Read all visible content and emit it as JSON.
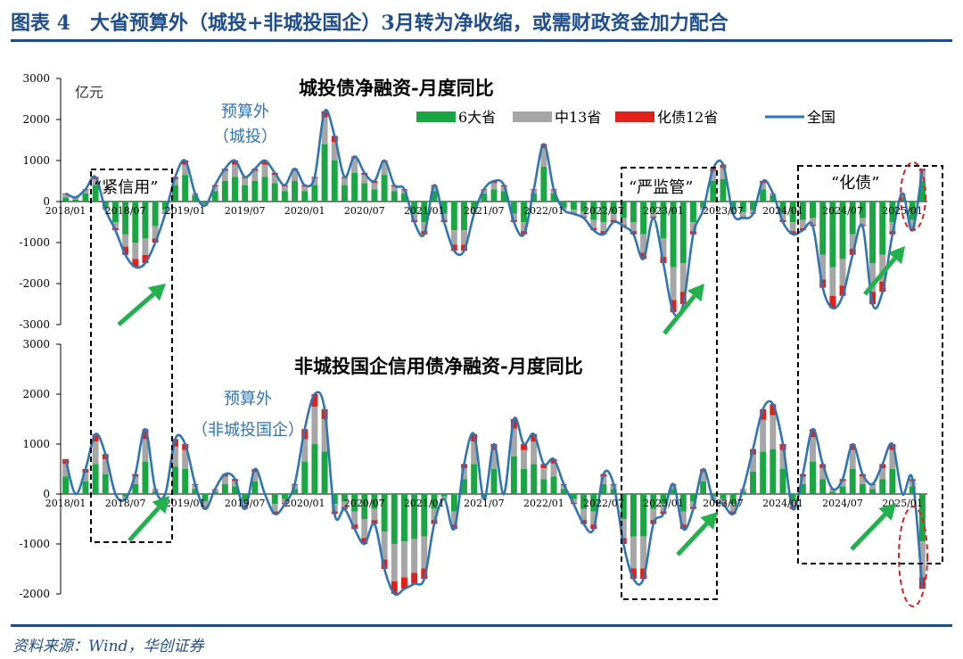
{
  "figure": {
    "title": "图表 4　大省预算外（城投+非城投国企）3月转为净收缩，或需财政资金加力配合",
    "source": "资料来源：Wind，华创证券"
  },
  "colors": {
    "frame": "#1f4e8c",
    "six_provinces": "#1aa643",
    "mid13": "#a6a6a6",
    "debt12": "#e0201b",
    "national_line": "#2e75b6",
    "arrow": "#22b14c",
    "ellipse": "#e02020"
  },
  "chart_data": [
    {
      "type": "bar",
      "title": "城投债净融资-月度同比",
      "unit_label": "亿元",
      "ylim": [
        -3000,
        3000
      ],
      "yticks": [
        -3000,
        -2000,
        -1000,
        0,
        1000,
        2000,
        3000
      ],
      "xtick_labels": [
        "2018/01",
        "2018/07",
        "2019/01",
        "2019/07",
        "2020/01",
        "2020/07",
        "2021/01",
        "2021/07",
        "2022/01",
        "2022/07",
        "2023/01",
        "2023/07",
        "2024/01",
        "2024/07",
        "2025/01"
      ],
      "series_names": [
        "6大省",
        "中13省",
        "化债12省",
        "全国"
      ],
      "stacked_series": [
        "6大省",
        "中13省",
        "化债12省"
      ],
      "line_series": "全国",
      "legend_position": "top-right",
      "x": [
        "2018/01",
        "2018/02",
        "2018/03",
        "2018/04",
        "2018/05",
        "2018/06",
        "2018/07",
        "2018/08",
        "2018/09",
        "2018/10",
        "2018/11",
        "2018/12",
        "2019/01",
        "2019/02",
        "2019/03",
        "2019/04",
        "2019/05",
        "2019/06",
        "2019/07",
        "2019/08",
        "2019/09",
        "2019/10",
        "2019/11",
        "2019/12",
        "2020/01",
        "2020/02",
        "2020/03",
        "2020/04",
        "2020/05",
        "2020/06",
        "2020/07",
        "2020/08",
        "2020/09",
        "2020/10",
        "2020/11",
        "2020/12",
        "2021/01",
        "2021/02",
        "2021/03",
        "2021/04",
        "2021/05",
        "2021/06",
        "2021/07",
        "2021/08",
        "2021/09",
        "2021/10",
        "2021/11",
        "2021/12",
        "2022/01",
        "2022/02",
        "2022/03",
        "2022/04",
        "2022/05",
        "2022/06",
        "2022/07",
        "2022/08",
        "2022/09",
        "2022/10",
        "2022/11",
        "2022/12",
        "2023/01",
        "2023/02",
        "2023/03",
        "2023/04",
        "2023/05",
        "2023/06",
        "2023/07",
        "2023/08",
        "2023/09",
        "2023/10",
        "2023/11",
        "2023/12",
        "2024/01",
        "2024/02",
        "2024/03",
        "2024/04",
        "2024/05",
        "2024/06",
        "2024/07",
        "2024/08",
        "2024/09",
        "2024/10",
        "2024/11",
        "2024/12",
        "2025/01",
        "2025/02",
        "2025/03"
      ],
      "national": [
        200,
        100,
        300,
        600,
        -200,
        -700,
        -1300,
        -1600,
        -1500,
        -1000,
        -300,
        600,
        1000,
        200,
        -100,
        400,
        800,
        1000,
        600,
        800,
        1000,
        700,
        400,
        800,
        400,
        600,
        2200,
        1600,
        600,
        1100,
        700,
        500,
        1000,
        400,
        300,
        -500,
        -800,
        400,
        -500,
        -1200,
        -1200,
        -300,
        300,
        500,
        400,
        -500,
        -800,
        300,
        1400,
        300,
        -200,
        -300,
        -400,
        -700,
        -800,
        -500,
        -600,
        -800,
        -1400,
        -400,
        -1500,
        -2700,
        -2500,
        -800,
        -200,
        800,
        900,
        -300,
        -400,
        -300,
        500,
        200,
        -500,
        -800,
        -700,
        -600,
        -2100,
        -2600,
        -2300,
        -1300,
        -600,
        -2500,
        -2200,
        -800,
        200,
        -700,
        800
      ],
      "six_provinces": [
        100,
        50,
        200,
        400,
        -150,
        -500,
        -800,
        -1000,
        -900,
        -600,
        -200,
        400,
        650,
        150,
        -50,
        250,
        500,
        600,
        400,
        500,
        600,
        450,
        250,
        500,
        250,
        400,
        1400,
        1000,
        400,
        700,
        450,
        300,
        650,
        250,
        200,
        -300,
        -500,
        250,
        -300,
        -700,
        -700,
        -200,
        200,
        300,
        250,
        -300,
        -500,
        200,
        850,
        200,
        -150,
        -200,
        -250,
        -450,
        -500,
        -300,
        -400,
        -500,
        -800,
        -250,
        -900,
        -1600,
        -1500,
        -500,
        -150,
        500,
        550,
        -200,
        -250,
        -200,
        300,
        150,
        -300,
        -500,
        -450,
        -400,
        -1300,
        -1600,
        -1400,
        -800,
        -400,
        -1500,
        -1300,
        -500,
        100,
        -450,
        500
      ],
      "mid13": [
        80,
        40,
        80,
        150,
        -40,
        -150,
        -300,
        -400,
        -400,
        -300,
        -80,
        150,
        250,
        40,
        -40,
        120,
        250,
        300,
        170,
        250,
        300,
        200,
        120,
        250,
        120,
        170,
        650,
        450,
        170,
        350,
        200,
        150,
        300,
        120,
        80,
        -150,
        -220,
        120,
        -150,
        -350,
        -350,
        -80,
        80,
        150,
        120,
        -150,
        -220,
        80,
        450,
        80,
        -40,
        -80,
        -120,
        -200,
        -220,
        -150,
        -170,
        -220,
        -450,
        -120,
        -450,
        -800,
        -700,
        -220,
        -40,
        250,
        270,
        -80,
        -120,
        -80,
        150,
        40,
        -150,
        -220,
        -200,
        -170,
        -600,
        -700,
        -650,
        -350,
        -170,
        -700,
        -650,
        -220,
        80,
        -200,
        250
      ],
      "debt12": [
        20,
        10,
        20,
        50,
        -10,
        -50,
        -200,
        -200,
        -200,
        -100,
        -20,
        50,
        100,
        10,
        -10,
        30,
        50,
        100,
        30,
        50,
        100,
        50,
        30,
        50,
        30,
        30,
        150,
        150,
        30,
        50,
        50,
        50,
        50,
        30,
        20,
        -50,
        -80,
        30,
        -50,
        -150,
        -150,
        -20,
        20,
        50,
        30,
        -50,
        -80,
        20,
        100,
        20,
        -10,
        -20,
        -30,
        -50,
        -80,
        -50,
        -30,
        -80,
        -150,
        -30,
        -150,
        -300,
        -300,
        -80,
        -10,
        50,
        80,
        -20,
        -30,
        -20,
        50,
        10,
        -50,
        -80,
        -50,
        -30,
        -200,
        -300,
        -250,
        -150,
        -30,
        -300,
        -250,
        -80,
        20,
        -50,
        50
      ]
    },
    {
      "type": "bar",
      "title": "非城投国企信用债净融资-月度同比",
      "ylim": [
        -2000,
        3000
      ],
      "yticks": [
        -2000,
        -1000,
        0,
        1000,
        2000,
        3000
      ],
      "xtick_labels": [
        "2018/01",
        "2018/07",
        "2019/01",
        "2019/07",
        "2020/01",
        "2020/07",
        "2021/01",
        "2021/07",
        "2022/01",
        "2022/07",
        "2023/01",
        "2023/07",
        "2024/01",
        "2024/07",
        "2025/01"
      ],
      "stacked_series": [
        "6大省",
        "中13省",
        "化债12省"
      ],
      "line_series": "全国",
      "x": [
        "2018/01",
        "2018/02",
        "2018/03",
        "2018/04",
        "2018/05",
        "2018/06",
        "2018/07",
        "2018/08",
        "2018/09",
        "2018/10",
        "2018/11",
        "2018/12",
        "2019/01",
        "2019/02",
        "2019/03",
        "2019/04",
        "2019/05",
        "2019/06",
        "2019/07",
        "2019/08",
        "2019/09",
        "2019/10",
        "2019/11",
        "2019/12",
        "2020/01",
        "2020/02",
        "2020/03",
        "2020/04",
        "2020/05",
        "2020/06",
        "2020/07",
        "2020/08",
        "2020/09",
        "2020/10",
        "2020/11",
        "2020/12",
        "2021/01",
        "2021/02",
        "2021/03",
        "2021/04",
        "2021/05",
        "2021/06",
        "2021/07",
        "2021/08",
        "2021/09",
        "2021/10",
        "2021/11",
        "2021/12",
        "2022/01",
        "2022/02",
        "2022/03",
        "2022/04",
        "2022/05",
        "2022/06",
        "2022/07",
        "2022/08",
        "2022/09",
        "2022/10",
        "2022/11",
        "2022/12",
        "2023/01",
        "2023/02",
        "2023/03",
        "2023/04",
        "2023/05",
        "2023/06",
        "2023/07",
        "2023/08",
        "2023/09",
        "2023/10",
        "2023/11",
        "2023/12",
        "2024/01",
        "2024/02",
        "2024/03",
        "2024/04",
        "2024/05",
        "2024/06",
        "2024/07",
        "2024/08",
        "2024/09",
        "2024/10",
        "2024/11",
        "2024/12",
        "2025/01",
        "2025/02",
        "2025/03"
      ],
      "national": [
        700,
        0,
        500,
        1200,
        800,
        0,
        -100,
        400,
        1300,
        100,
        0,
        1100,
        1000,
        200,
        -300,
        100,
        400,
        300,
        -300,
        500,
        0,
        -400,
        -200,
        200,
        1300,
        2000,
        1700,
        -400,
        -300,
        -700,
        -1000,
        -600,
        -1500,
        -2000,
        -1900,
        -1800,
        -1700,
        -600,
        -100,
        -700,
        600,
        1200,
        -100,
        1000,
        0,
        1500,
        1000,
        1200,
        600,
        700,
        200,
        -200,
        -600,
        -700,
        400,
        200,
        -1000,
        -1700,
        -1700,
        -600,
        -400,
        200,
        -700,
        -300,
        500,
        -100,
        -200,
        -400,
        100,
        900,
        1700,
        1800,
        1000,
        -300,
        400,
        1300,
        600,
        100,
        300,
        1000,
        400,
        200,
        600,
        1000,
        0,
        300,
        -1900
      ],
      "six_provinces": [
        350,
        0,
        250,
        600,
        400,
        0,
        -50,
        200,
        650,
        50,
        0,
        550,
        500,
        100,
        -150,
        50,
        200,
        150,
        -150,
        250,
        0,
        -200,
        -100,
        100,
        650,
        1000,
        850,
        -200,
        -150,
        -350,
        -500,
        -300,
        -750,
        -1000,
        -950,
        -900,
        -850,
        -300,
        -50,
        -350,
        300,
        600,
        -50,
        500,
        0,
        750,
        500,
        600,
        300,
        350,
        100,
        -100,
        -300,
        -350,
        200,
        100,
        -500,
        -850,
        -850,
        -300,
        -200,
        100,
        -350,
        -150,
        250,
        -50,
        -100,
        -200,
        50,
        450,
        850,
        900,
        500,
        -150,
        200,
        650,
        300,
        50,
        150,
        500,
        200,
        100,
        300,
        500,
        0,
        150,
        -950
      ],
      "mid13": [
        250,
        0,
        180,
        450,
        300,
        0,
        -40,
        150,
        450,
        40,
        0,
        400,
        380,
        80,
        -110,
        40,
        150,
        110,
        -110,
        190,
        0,
        -150,
        -80,
        80,
        450,
        750,
        650,
        -150,
        -110,
        -260,
        -380,
        -220,
        -560,
        -750,
        -720,
        -680,
        -640,
        -220,
        -40,
        -260,
        220,
        450,
        -40,
        380,
        0,
        560,
        380,
        450,
        220,
        260,
        80,
        -80,
        -220,
        -260,
        150,
        80,
        -380,
        -640,
        -640,
        -220,
        -150,
        80,
        -260,
        -110,
        190,
        -40,
        -80,
        -150,
        40,
        340,
        640,
        680,
        380,
        -110,
        150,
        490,
        220,
        40,
        110,
        380,
        150,
        80,
        220,
        380,
        0,
        110,
        -720
      ],
      "debt12": [
        100,
        0,
        70,
        150,
        100,
        0,
        -10,
        50,
        200,
        10,
        0,
        150,
        120,
        20,
        -40,
        10,
        50,
        40,
        -40,
        60,
        0,
        -50,
        -20,
        20,
        200,
        250,
        200,
        -50,
        -40,
        -90,
        -120,
        -80,
        -190,
        -250,
        -230,
        -220,
        -210,
        -80,
        -10,
        -90,
        80,
        150,
        -10,
        120,
        0,
        190,
        120,
        150,
        80,
        90,
        20,
        -20,
        -80,
        -90,
        50,
        20,
        -120,
        -210,
        -210,
        -80,
        -50,
        20,
        -90,
        -40,
        60,
        -10,
        -20,
        -50,
        10,
        110,
        210,
        220,
        120,
        -40,
        50,
        160,
        80,
        10,
        40,
        120,
        50,
        20,
        80,
        120,
        0,
        40,
        -230
      ]
    }
  ],
  "annotations": {
    "top": {
      "offbudget": [
        "预算外",
        "（城投）"
      ],
      "tight_credit": "“紧信用”",
      "strict_control": "“严监管”",
      "debt_resolution": "“化债”"
    },
    "bottom": {
      "offbudget": [
        "预算外",
        "（非城投国企）"
      ]
    }
  }
}
